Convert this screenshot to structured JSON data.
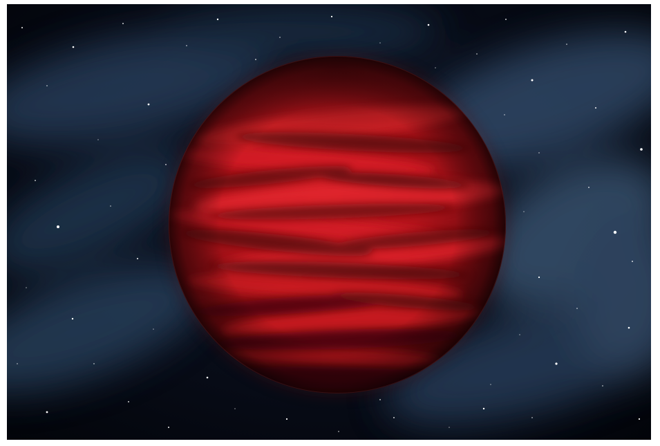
{
  "image": {
    "subject_icon": "planet-icon",
    "colors": {
      "space_background": "#05080f",
      "nebula": "#3d5a78",
      "planet_highlight": "#e2252c",
      "planet_mid": "#b3141b",
      "planet_shadow": "#3a0608",
      "frame": "#ffffff"
    }
  }
}
